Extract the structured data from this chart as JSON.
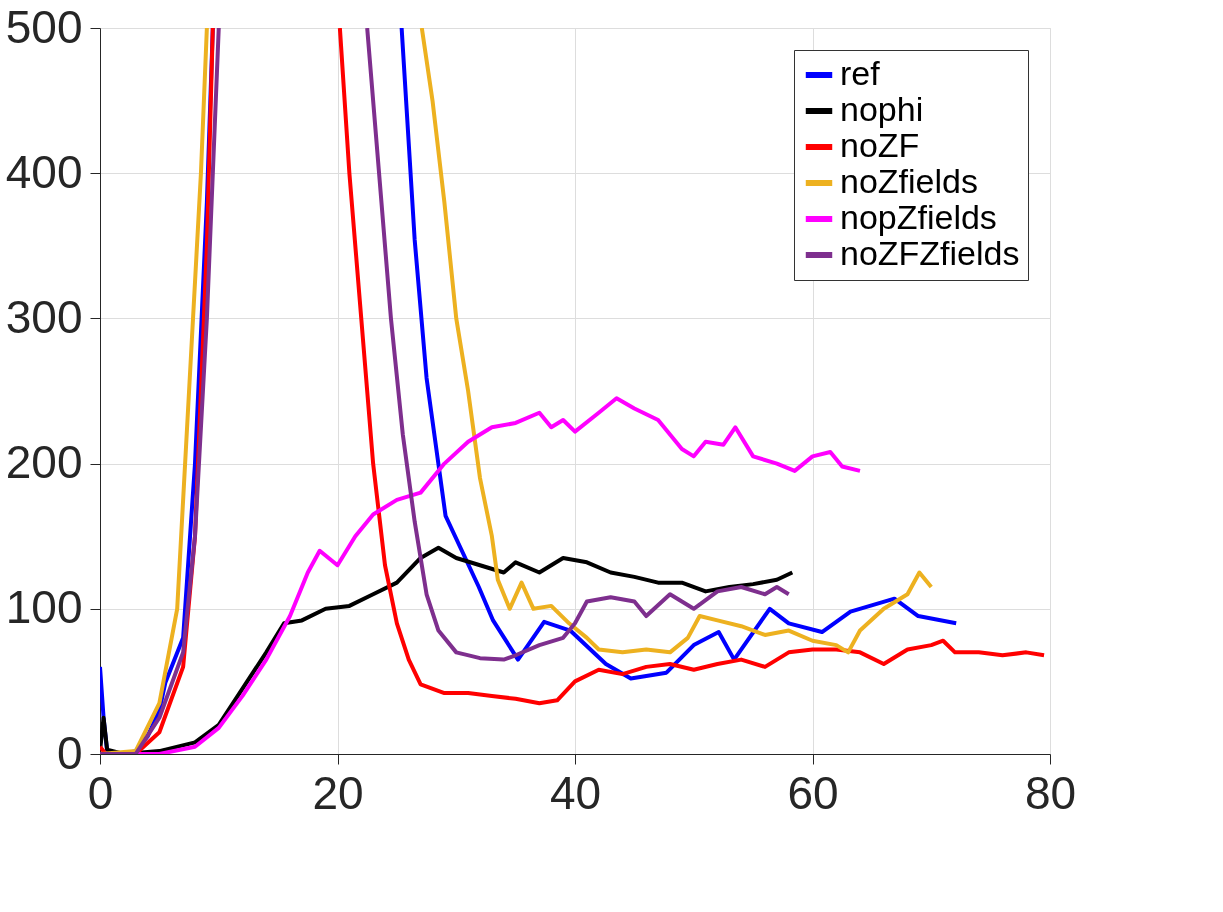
{
  "chart_data": {
    "type": "line",
    "xlim": [
      0,
      80
    ],
    "ylim": [
      0,
      500
    ],
    "xticks": [
      0,
      20,
      40,
      60,
      80
    ],
    "yticks": [
      0,
      100,
      200,
      300,
      400,
      500
    ],
    "grid": true,
    "legend": "top right",
    "line_style": "solid",
    "marker": "none",
    "series": [
      {
        "name": "ref",
        "color": "#0000ff",
        "x": [
          0,
          0.3,
          0.6,
          2,
          3,
          4,
          5,
          5.5,
          7,
          8,
          9,
          9.5,
          9.6,
          25.3,
          25.4,
          26.5,
          27.5,
          29.1,
          31.9,
          33.1,
          35.2,
          37.4,
          39.6,
          42.6,
          44.7,
          47.7,
          50,
          52.1,
          53.4,
          56.4,
          58,
          60.8,
          63.2,
          66.9,
          68.9,
          72.1
        ],
        "values": [
          60,
          25,
          2,
          0,
          2,
          12,
          30,
          49,
          80,
          200,
          380,
          500,
          null,
          null,
          500,
          354,
          259,
          164,
          115,
          92,
          65,
          91,
          85,
          62,
          52,
          56,
          75,
          84,
          65,
          100,
          90,
          84,
          98,
          107,
          95,
          90
        ]
      },
      {
        "name": "nophi",
        "color": "#000000",
        "x": [
          0,
          0.3,
          0.6,
          2,
          5,
          8,
          10,
          12,
          14,
          15.5,
          17,
          19,
          21,
          23,
          25,
          27,
          28.5,
          30,
          32,
          34,
          35,
          37,
          39,
          41,
          43,
          45,
          47,
          49,
          51,
          53,
          55,
          57,
          58.3
        ],
        "values": [
          2,
          25,
          3,
          0,
          2,
          8,
          20,
          45,
          70,
          90,
          92,
          100,
          102,
          110,
          118,
          135,
          142,
          135,
          130,
          125,
          132,
          125,
          135,
          132,
          125,
          122,
          118,
          118,
          112,
          115,
          117,
          120,
          125
        ]
      },
      {
        "name": "noZF",
        "color": "#ff0000",
        "x": [
          0,
          0.5,
          3,
          5,
          7,
          8,
          9,
          9.5,
          9.6,
          20.1,
          20.2,
          21,
          22,
          23,
          24,
          25,
          26,
          27,
          29,
          31,
          33,
          35,
          37,
          38.5,
          40,
          42,
          44,
          46,
          48,
          50,
          52,
          54,
          56,
          58,
          60,
          62,
          64,
          66,
          68,
          70,
          71,
          72,
          74,
          76,
          78,
          79.5
        ],
        "values": [
          5,
          0,
          0,
          15,
          60,
          150,
          350,
          500,
          null,
          null,
          500,
          400,
          300,
          200,
          130,
          90,
          65,
          48,
          42,
          42,
          40,
          38,
          35,
          37,
          50,
          58,
          55,
          60,
          62,
          58,
          62,
          65,
          60,
          70,
          72,
          72,
          70,
          62,
          72,
          75,
          78,
          70,
          70,
          68,
          70,
          68
        ]
      },
      {
        "name": "noZfields",
        "color": "#edb120",
        "x": [
          0,
          3,
          5,
          6.5,
          7.5,
          8.5,
          9,
          9.1,
          27,
          27.1,
          28,
          29,
          30,
          31,
          32,
          33,
          33.5,
          34.5,
          35.5,
          36.5,
          38,
          39.5,
          41,
          42,
          44,
          46,
          48,
          49.5,
          50.5,
          52,
          54,
          56,
          58,
          60,
          62,
          63,
          64,
          66,
          68,
          69,
          70
        ],
        "values": [
          0,
          2,
          35,
          100,
          250,
          400,
          500,
          null,
          null,
          500,
          450,
          380,
          300,
          250,
          190,
          150,
          120,
          100,
          118,
          100,
          102,
          90,
          80,
          72,
          70,
          72,
          70,
          80,
          95,
          92,
          88,
          82,
          85,
          78,
          75,
          70,
          85,
          100,
          110,
          125,
          115
        ]
      },
      {
        "name": "nopZfields",
        "color": "#ff00ff",
        "x": [
          0,
          5,
          8,
          10,
          12,
          14,
          16,
          17.5,
          18.5,
          20,
          21.5,
          23,
          25,
          27,
          29,
          31,
          33,
          35,
          37,
          38,
          39,
          40,
          42,
          43.5,
          45,
          47,
          49,
          50,
          51,
          52.5,
          53.5,
          55,
          57,
          58.5,
          60,
          61.5,
          62.5,
          64
        ],
        "values": [
          0,
          0,
          5,
          18,
          40,
          65,
          95,
          125,
          140,
          130,
          150,
          165,
          175,
          180,
          200,
          215,
          225,
          228,
          235,
          225,
          230,
          222,
          235,
          245,
          238,
          230,
          210,
          205,
          215,
          213,
          225,
          205,
          200,
          195,
          205,
          208,
          198,
          195
        ]
      },
      {
        "name": "noZFZfields",
        "color": "#7e2f8e",
        "x": [
          0,
          3,
          5,
          7,
          8,
          9,
          10,
          10.1,
          22.4,
          22.5,
          23.5,
          24.5,
          25.5,
          26.5,
          27.5,
          28.5,
          30,
          32,
          34,
          35,
          37,
          39,
          40,
          41,
          43,
          45,
          46,
          48,
          50,
          52,
          54,
          56,
          57,
          58
        ],
        "values": [
          0,
          0,
          25,
          70,
          150,
          300,
          500,
          null,
          null,
          500,
          400,
          300,
          220,
          160,
          110,
          85,
          70,
          66,
          65,
          68,
          75,
          80,
          90,
          105,
          108,
          105,
          95,
          110,
          100,
          112,
          115,
          110,
          115,
          110
        ]
      }
    ]
  }
}
